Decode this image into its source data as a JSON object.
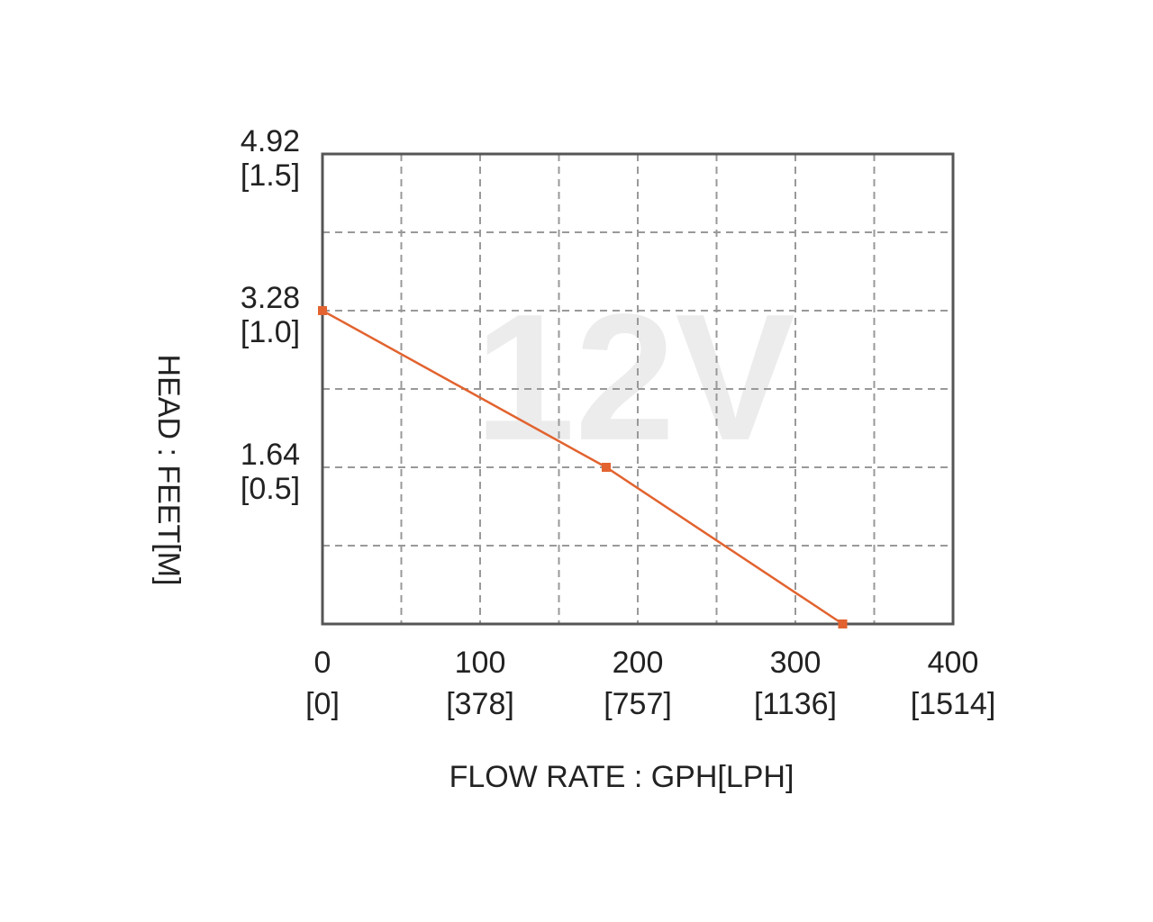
{
  "chart_data": {
    "type": "line",
    "watermark": "12V",
    "x_label": "FLOW RATE : GPH[LPH]",
    "y_label": "HEAD : FEET[M]",
    "x": [
      0,
      180,
      330
    ],
    "values": [
      3.28,
      1.64,
      0
    ],
    "color": "#e2632f",
    "xlim": [
      0,
      400
    ],
    "ylim": [
      0,
      4.92
    ],
    "xticks": [
      0,
      100,
      200,
      300,
      400
    ],
    "x_secondary_labels": [
      "[0]",
      "[378]",
      "[757]",
      "[1136]",
      "[1514]"
    ],
    "yticks": [
      1.64,
      3.28,
      4.92
    ],
    "y_secondary_labels": [
      "[0.5]",
      "[1.0]",
      "[1.5]"
    ],
    "xgrid": [
      50,
      100,
      150,
      200,
      250,
      300,
      350
    ],
    "ygrid": [
      0.82,
      1.64,
      2.46,
      3.28,
      4.1
    ],
    "grid": true
  }
}
